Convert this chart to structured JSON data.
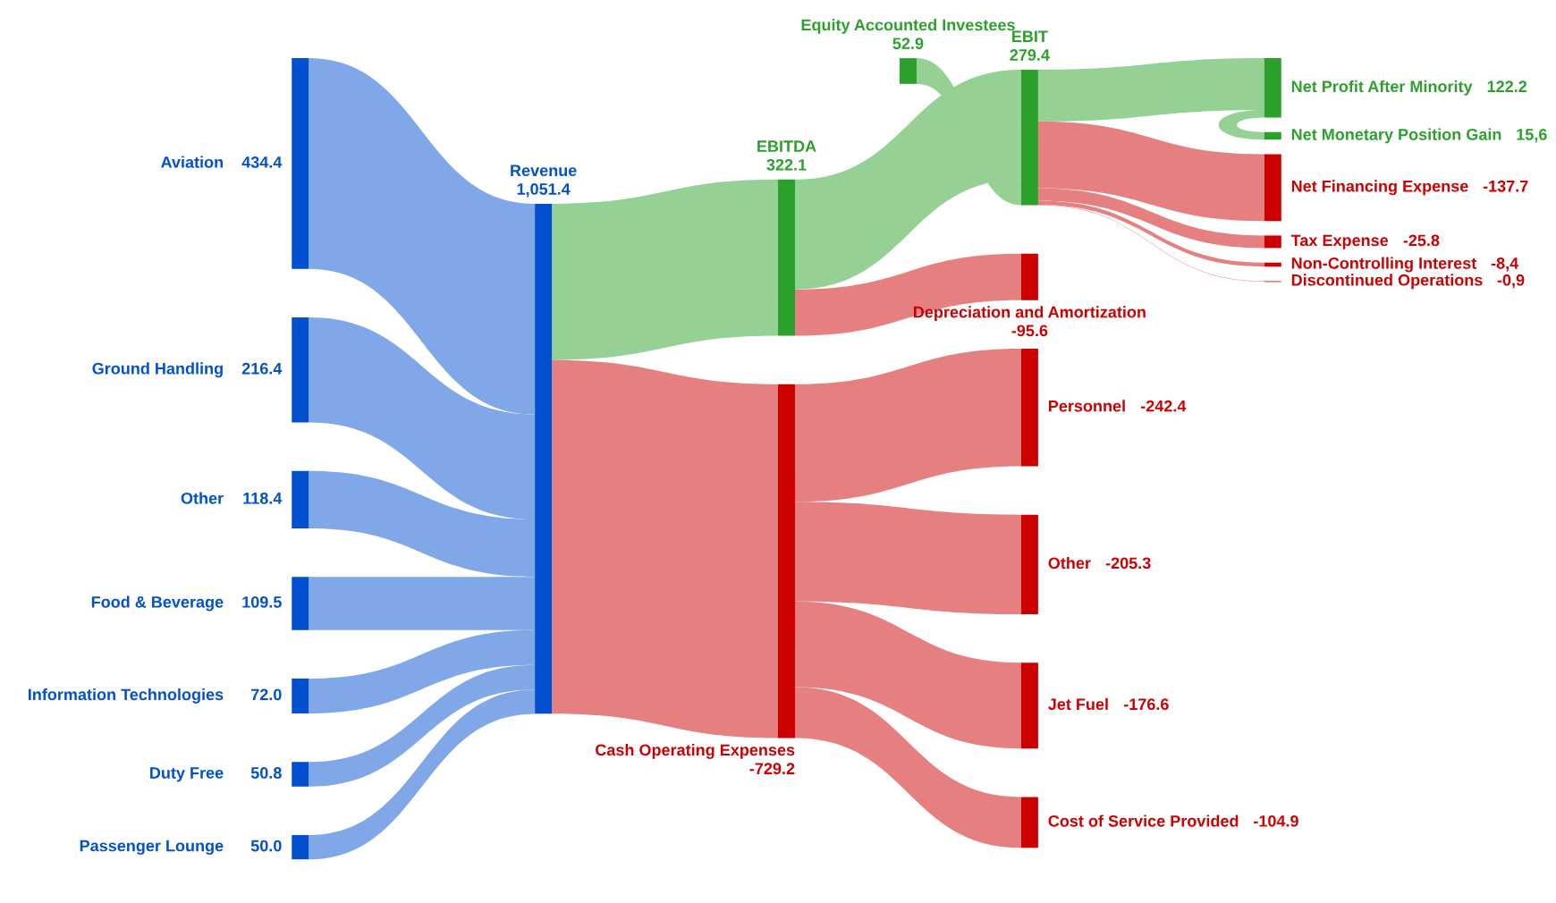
{
  "chart_data": {
    "type": "other",
    "categories": [
      "Aviation",
      "Ground Handling",
      "Other",
      "Food & Beverage",
      "Information Technologies",
      "Duty Free",
      "Passenger Lounge",
      "Revenue",
      "EBITDA",
      "Cash Operating Expenses",
      "Equity Accounted Investees",
      "EBIT",
      "Depreciation and Amortization",
      "Personnel",
      "Other",
      "Jet Fuel",
      "Cost of Service Provided",
      "Net Profit After Minority",
      "Net Monetary Position Gain",
      "Net Financing Expense",
      "Tax Expense",
      "Non-Controlling Interest",
      "Discontinued Operations"
    ],
    "values": [
      434.4,
      216.4,
      118.4,
      109.5,
      72.0,
      50.8,
      50.0,
      1051.4,
      322.1,
      -729.2,
      52.9,
      279.4,
      -95.6,
      -242.4,
      -205.3,
      -176.6,
      -104.9,
      122.2,
      15.6,
      -137.7,
      -25.8,
      -8.4,
      -0.9
    ],
    "value_labels": [
      "434.4",
      "216.4",
      "118.4",
      "109.5",
      "72.0",
      "50.8",
      "50.0",
      "1,051.4",
      "322.1",
      "-729.2",
      "52.9",
      "279.4",
      "-95.6",
      "-242.4",
      "-205.3",
      "-176.6",
      "-104.9",
      "122.2",
      "15,6",
      "-137.7",
      "-25.8",
      "-8,4",
      "-0,9"
    ],
    "colors": [
      "#0050d0",
      "#0050d0",
      "#0050d0",
      "#0050d0",
      "#0050d0",
      "#0050d0",
      "#0050d0",
      "#0050d0",
      "#2ca02c",
      "#cc0000",
      "#2ca02c",
      "#2ca02c",
      "#cc0000",
      "#cc0000",
      "#cc0000",
      "#cc0000",
      "#cc0000",
      "#2ca02c",
      "#2ca02c",
      "#cc0000",
      "#cc0000",
      "#cc0000",
      "#cc0000"
    ]
  }
}
